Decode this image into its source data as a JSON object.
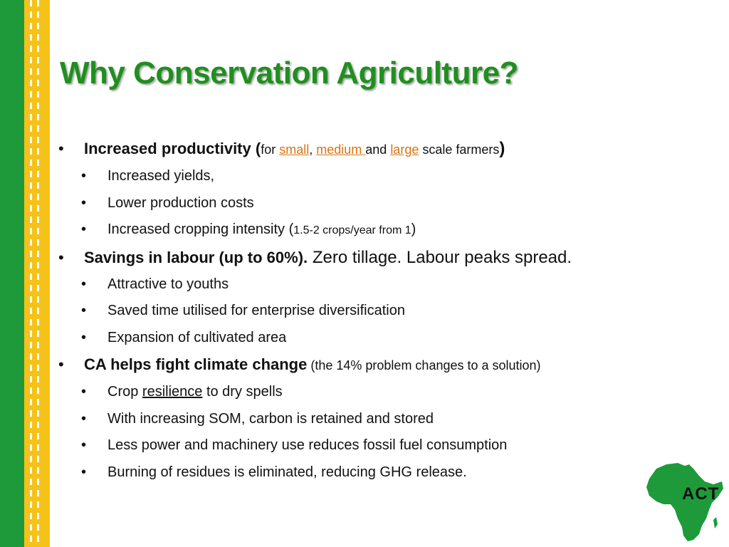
{
  "title": "Why Conservation Agriculture?",
  "bullet_char": "•",
  "sections": [
    {
      "lead": "Increased productivity (",
      "pre": "for ",
      "link1": "small",
      "sep": ", ",
      "link2": "medium ",
      "mid": "and ",
      "link3": "large",
      "post": " scale farmers",
      "close": ")",
      "subs": [
        "Increased yields,",
        "Lower production costs",
        {
          "text": "Increased cropping intensity (",
          "small": "1.5-2 crops/year from 1",
          "close": ")"
        }
      ]
    },
    {
      "lead": "Savings in labour (up to 60%).",
      "rest": " Zero tillage. Labour peaks spread.",
      "subs": [
        "Attractive to youths",
        "Saved time utilised for enterprise diversification",
        "Expansion of cultivated area"
      ]
    },
    {
      "lead": "CA helps fight climate change",
      "rest": " (the 14% problem changes to a solution)",
      "subs": [
        {
          "pre": "Crop ",
          "underlined": "resilience",
          "post": " to dry spells"
        },
        "With increasing SOM, carbon is retained and stored",
        "Less power and machinery use reduces fossil fuel consumption",
        "Burning of residues is eliminated, reducing GHG release."
      ]
    }
  ],
  "logo": {
    "text": "ACT",
    "icon": "africa-map-icon",
    "color": "#1e9a3a"
  },
  "colors": {
    "title": "#1f8f1f",
    "link": "#d9740f",
    "green_band": "#1e9a3a",
    "yellow_band": "#f5c21a"
  }
}
